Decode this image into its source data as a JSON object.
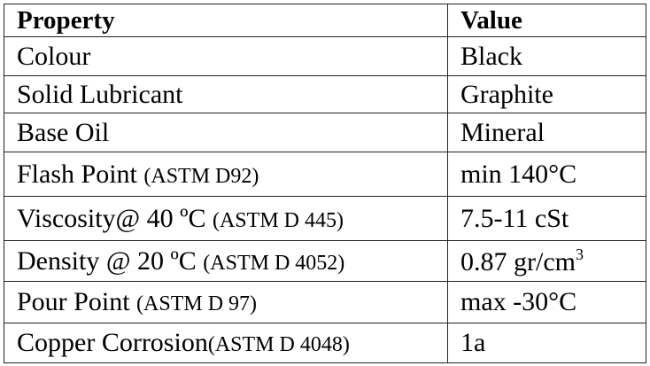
{
  "table": {
    "header": [
      "Property",
      "Value"
    ],
    "rows": [
      {
        "property": "Colour",
        "value": "Black"
      },
      {
        "property": "Solid Lubricant",
        "value": "Graphite"
      },
      {
        "property": "Base Oil",
        "value": "Mineral"
      },
      {
        "property": "Flash Point",
        "note": "(ASTM D92)",
        "value": "min 140°C"
      },
      {
        "property": "Viscosity@ 40 ºC",
        "note": "(ASTM D 445)",
        "value": "7.5-11 cSt"
      },
      {
        "property": "Density @ 20 ºC",
        "note": "(ASTM D 4052)",
        "value": "0.87 gr/cm",
        "sup": "3"
      },
      {
        "property": "Pour Point",
        "note": "(ASTM D 97)",
        "value": "max -30°C"
      },
      {
        "property": "Copper Corrosion",
        "note": "(ASTM D 4048)",
        "value": "1a"
      }
    ]
  }
}
